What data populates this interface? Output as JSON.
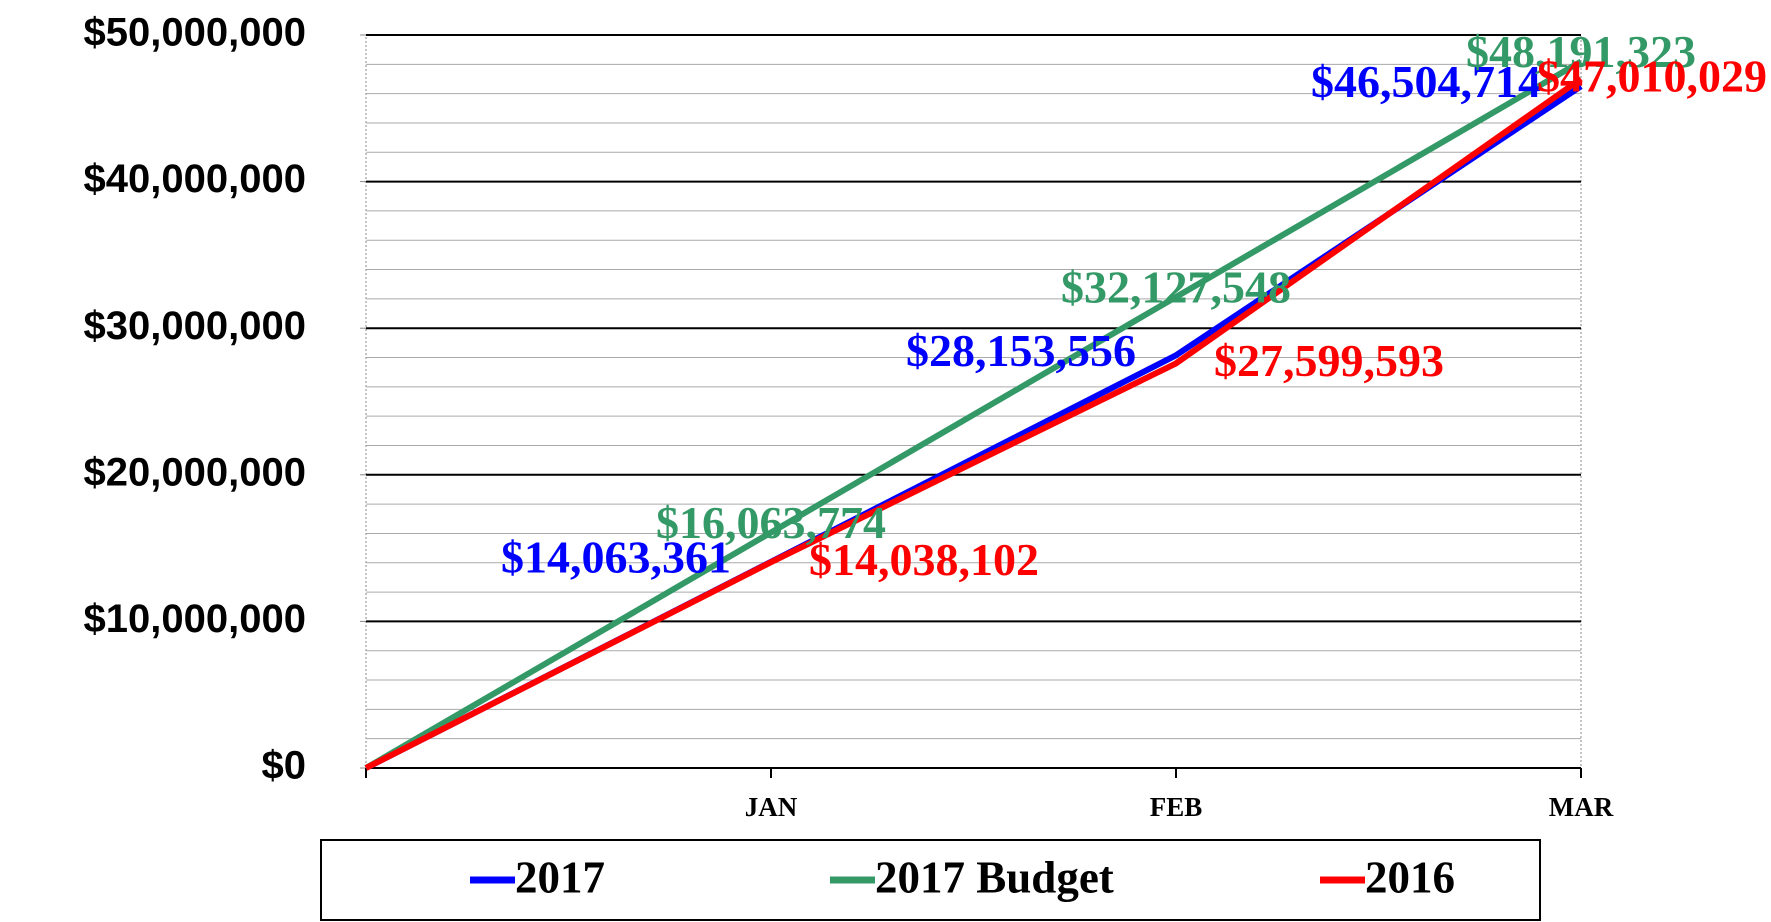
{
  "chart_data": {
    "type": "line",
    "categories": [
      null,
      "JAN",
      "FEB",
      "MAR"
    ],
    "series": [
      {
        "name": "2017",
        "color": "#0000ff",
        "values": [
          0,
          14063361,
          28153556,
          46504714
        ],
        "value_labels": [
          null,
          "$14,063,361",
          "$28,153,556",
          "$46,504,714"
        ]
      },
      {
        "name": "2017 Budget",
        "color": "#339966",
        "values": [
          0,
          16063774,
          32127548,
          48191323
        ],
        "value_labels": [
          null,
          "$16,063,774",
          "$32,127,548",
          "$48,191,323"
        ]
      },
      {
        "name": "2016",
        "color": "#ff0000",
        "values": [
          0,
          14038102,
          27599593,
          47010029
        ],
        "value_labels": [
          null,
          "$14,038,102",
          "$27,599,593",
          "$47,010,029"
        ]
      }
    ],
    "ylim": [
      0,
      50000000
    ],
    "yticks": [
      {
        "value": 0,
        "label": "$0"
      },
      {
        "value": 10000000,
        "label": "$10,000,000"
      },
      {
        "value": 20000000,
        "label": "$20,000,000"
      },
      {
        "value": 30000000,
        "label": "$30,000,000"
      },
      {
        "value": 40000000,
        "label": "$40,000,000"
      },
      {
        "value": 50000000,
        "label": "$50,000,000"
      }
    ],
    "grid": true,
    "minor_grid_step": 2000000,
    "legend": "bottom"
  }
}
